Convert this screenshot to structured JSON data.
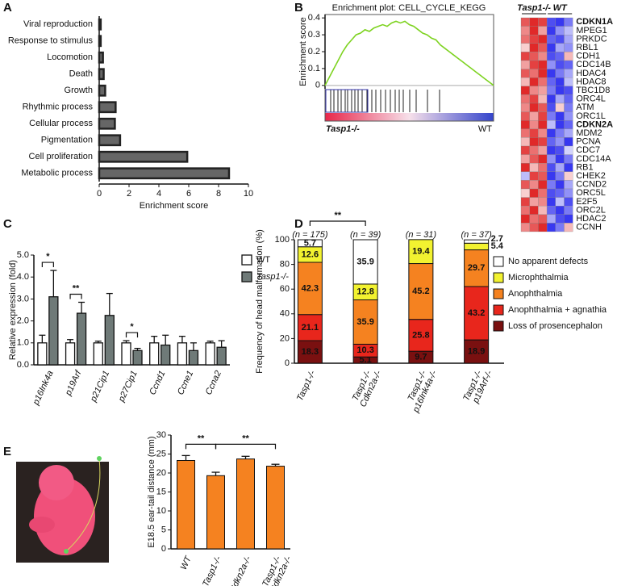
{
  "chart_data": [
    {
      "type": "hbar",
      "panel": "A",
      "xlabel": "Enrichment score",
      "categories": [
        "Viral reproduction",
        "Response to stimulus",
        "Locomotion",
        "Death",
        "Growth",
        "Rhythmic process",
        "Cellular process",
        "Pigmentation",
        "Cell proliferation",
        "Metabolic process"
      ],
      "values": [
        0.1,
        0.1,
        0.25,
        0.3,
        0.4,
        1.1,
        1.05,
        1.4,
        5.9,
        8.7
      ],
      "color": "#666666",
      "xlim": [
        0,
        10
      ],
      "xticks": [
        0,
        2,
        4,
        6,
        8,
        10
      ]
    },
    {
      "type": "line",
      "panel": "B",
      "title": "Enrichment plot: CELL_CYCLE_KEGG",
      "ylabel": "Enrichment score",
      "left_label": "Tasp1-/-",
      "right_label": "WT",
      "color": "#7ed321",
      "values": [
        0,
        0.05,
        0.1,
        0.15,
        0.2,
        0.24,
        0.27,
        0.3,
        0.31,
        0.33,
        0.32,
        0.34,
        0.35,
        0.36,
        0.35,
        0.37,
        0.38,
        0.37,
        0.38,
        0.36,
        0.35,
        0.33,
        0.31,
        0.3,
        0.28,
        0.27,
        0.24,
        0.22,
        0.2,
        0.18,
        0.16,
        0.14,
        0.12,
        0.1,
        0.08,
        0.06,
        0.04,
        0.02,
        0
      ],
      "ylim": [
        -0.02,
        0.42
      ],
      "yticks": [
        0,
        0.1,
        0.2,
        0.3,
        0.4
      ]
    },
    {
      "type": "heatmap",
      "groups": [
        {
          "label": "Tasp1-/-",
          "span": 3
        },
        {
          "label": "WT",
          "span": 3
        }
      ],
      "low_color": "#2222ee",
      "high_color": "#dd1111",
      "vlim": [
        -1,
        1
      ],
      "rows": [
        {
          "name": "CDKN1A",
          "bold": true,
          "values": [
            0.7,
            0.9,
            0.8,
            -0.8,
            -0.9,
            -0.6
          ]
        },
        {
          "name": "MPEG1",
          "values": [
            0.5,
            0.9,
            0.4,
            -0.9,
            -0.5,
            -0.3
          ]
        },
        {
          "name": "PRKDC",
          "values": [
            0.6,
            0.8,
            0.9,
            -0.7,
            -0.8,
            -0.4
          ]
        },
        {
          "name": "RBL1",
          "values": [
            0.2,
            0.9,
            0.7,
            -0.9,
            -0.4,
            -0.5
          ]
        },
        {
          "name": "CDH1",
          "values": [
            0.8,
            0.7,
            0.5,
            -0.8,
            -0.7,
            0.3
          ]
        },
        {
          "name": "CDC14B",
          "values": [
            0.4,
            0.8,
            0.9,
            -0.5,
            -0.8,
            -0.7
          ]
        },
        {
          "name": "HDAC4",
          "values": [
            0.7,
            0.6,
            0.9,
            -0.9,
            -0.6,
            -0.4
          ]
        },
        {
          "name": "HDAC8",
          "values": [
            0.3,
            0.9,
            0.6,
            -0.7,
            -0.9,
            -0.3
          ]
        },
        {
          "name": "TBC1D8",
          "values": [
            0.9,
            0.5,
            0.4,
            -0.6,
            -0.9,
            -0.8
          ]
        },
        {
          "name": "ORC4L",
          "values": [
            0.6,
            0.8,
            0.3,
            -0.9,
            -0.4,
            -0.7
          ]
        },
        {
          "name": "ATM",
          "values": [
            0.5,
            0.9,
            0.7,
            -0.8,
            0.2,
            -0.6
          ]
        },
        {
          "name": "ORC1L",
          "values": [
            0.7,
            0.4,
            0.8,
            -0.6,
            -0.9,
            -0.5
          ]
        },
        {
          "name": "CDKN2A",
          "bold": true,
          "values": [
            0.9,
            0.5,
            0.9,
            -0.3,
            -0.9,
            -0.7
          ]
        },
        {
          "name": "MDM2",
          "values": [
            0.6,
            0.8,
            0.5,
            -0.9,
            -0.6,
            -0.4
          ]
        },
        {
          "name": "PCNA",
          "values": [
            0.3,
            0.9,
            0.8,
            -0.7,
            -0.5,
            -0.9
          ]
        },
        {
          "name": "CDC7",
          "values": [
            0.8,
            0.6,
            0.4,
            -0.9,
            -0.8,
            -0.2
          ]
        },
        {
          "name": "CDC14A",
          "values": [
            0.4,
            0.7,
            0.9,
            -0.5,
            -0.9,
            -0.6
          ]
        },
        {
          "name": "RB1",
          "values": [
            0.9,
            0.3,
            0.6,
            -0.8,
            -0.4,
            -0.9
          ]
        },
        {
          "name": "CHEK2",
          "values": [
            -0.3,
            0.8,
            0.7,
            -0.9,
            -0.6,
            0.2
          ]
        },
        {
          "name": "CCND2",
          "values": [
            0.7,
            0.5,
            0.9,
            -0.6,
            -0.9,
            -0.4
          ]
        },
        {
          "name": "ORC5L",
          "values": [
            0.2,
            0.9,
            0.6,
            -0.8,
            -0.7,
            -0.5
          ]
        },
        {
          "name": "E2F5",
          "values": [
            0.8,
            0.4,
            0.5,
            -0.9,
            -0.3,
            -0.8
          ]
        },
        {
          "name": "ORC2L",
          "values": [
            0.6,
            0.9,
            0.3,
            -0.7,
            -0.9,
            -0.6
          ]
        },
        {
          "name": "HDAC2",
          "values": [
            0.9,
            0.6,
            0.7,
            -0.4,
            -0.8,
            -0.9
          ]
        },
        {
          "name": "CCNH",
          "values": [
            0.5,
            0.7,
            0.9,
            -0.9,
            -0.6,
            0.3
          ]
        }
      ]
    },
    {
      "type": "grouped_bar",
      "panel": "C",
      "ylabel": "Relative expression (fold)",
      "legend": "right",
      "categories": [
        "p16Ink4a",
        "p19Arf",
        "p21Cip1",
        "p27Cip1",
        "Ccnd1",
        "Ccne1",
        "Ccna2"
      ],
      "series": [
        {
          "name": "WT",
          "color": "#ffffff",
          "values": [
            1,
            1,
            1,
            1,
            1,
            1,
            1
          ],
          "errors": [
            0.35,
            0.15,
            0.08,
            0.1,
            0.3,
            0.3,
            0.08
          ]
        },
        {
          "name": "Tasp1-/-",
          "color": "#6f7a78",
          "values": [
            3.1,
            2.35,
            2.25,
            0.65,
            0.9,
            0.65,
            0.8
          ],
          "errors": [
            1.2,
            0.5,
            1.0,
            0.1,
            0.45,
            0.35,
            0.3
          ]
        }
      ],
      "ylim": [
        0,
        5
      ],
      "yticks": [
        {
          "value": 0,
          "label": "0.0"
        },
        {
          "value": 1,
          "label": "1.0"
        },
        {
          "value": 2,
          "label": "2.0"
        },
        {
          "value": 3,
          "label": "3.0"
        },
        {
          "value": 4,
          "label": "4.0"
        },
        {
          "value": 5,
          "label": "5.0"
        }
      ],
      "annotations": [
        {
          "label": "*",
          "category": 0
        },
        {
          "label": "**",
          "category": 1
        },
        {
          "label": "*",
          "category": 3
        }
      ]
    },
    {
      "type": "stacked_bar",
      "panel": "D",
      "ylabel": "Frequency of head malformation (%)",
      "legend": "right",
      "categories": [
        [
          "Tasp1-/-"
        ],
        [
          "Tasp1-/-",
          "Cdkn2a-/-"
        ],
        [
          "Tasp1-/-",
          "p16Ink4a-/-"
        ],
        [
          "Tasp1-/-",
          "p19Arf-/-"
        ]
      ],
      "n_labels": [
        "(n = 175)",
        "(n = 39)",
        "(n = 31)",
        "(n = 37)"
      ],
      "series": [
        {
          "name": "No apparent defects",
          "color": "#ffffff",
          "values": [
            5.7,
            35.9,
            0,
            2.7
          ]
        },
        {
          "name": "Microphthalmia",
          "color": "#f2f230",
          "values": [
            12.6,
            12.8,
            19.4,
            5.4
          ]
        },
        {
          "name": "Anophthalmia",
          "color": "#f58220",
          "values": [
            42.3,
            35.9,
            45.2,
            29.7
          ]
        },
        {
          "name": "Anophthalmia + agnathia",
          "color": "#e8261c",
          "values": [
            21.1,
            10.3,
            25.8,
            43.2
          ]
        },
        {
          "name": "Loss of prosencephalon",
          "color": "#7a1010",
          "values": [
            18.3,
            5.1,
            9.7,
            18.9
          ]
        }
      ],
      "ylim": [
        0,
        100
      ],
      "yticks": [
        0,
        20,
        40,
        60,
        80,
        100
      ],
      "annotations": [
        {
          "label": "**",
          "from": 0,
          "to": 1
        }
      ]
    },
    {
      "type": "bar",
      "panel": "E",
      "ylabel": "E18.5 ear-tail distance (mm)",
      "categories": [
        [
          "WT"
        ],
        [
          "Tasp1-/-"
        ],
        [
          "Cdkn2a-/-"
        ],
        [
          "Tasp1-/-",
          "Cdkn2a-/-"
        ]
      ],
      "values": [
        23.3,
        19.3,
        23.7,
        21.8
      ],
      "errors": [
        1.3,
        0.9,
        0.7,
        0.5
      ],
      "color": "#f58220",
      "ylim": [
        0,
        30
      ],
      "yticks": [
        0,
        5,
        10,
        15,
        20,
        25,
        30
      ],
      "annotations": [
        {
          "label": "**",
          "from": 0,
          "to": 1
        },
        {
          "label": "**",
          "from": 1,
          "to": 3
        }
      ]
    }
  ]
}
